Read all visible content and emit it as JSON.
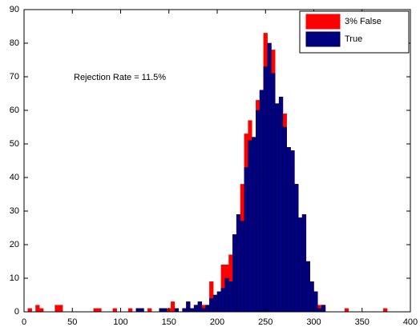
{
  "chart_data": {
    "type": "histogram",
    "bins": [
      0,
      4,
      8,
      12,
      16,
      20,
      24,
      28,
      32,
      36,
      40,
      44,
      48,
      52,
      56,
      60,
      64,
      68,
      72,
      76,
      80,
      84,
      88,
      92,
      96,
      100,
      104,
      108,
      112,
      116,
      120,
      124,
      128,
      132,
      136,
      140,
      144,
      148,
      152,
      156,
      160,
      164,
      168,
      172,
      176,
      180,
      184,
      188,
      192,
      196,
      200,
      204,
      208,
      212,
      216,
      220,
      224,
      228,
      232,
      236,
      240,
      244,
      248,
      252,
      256,
      260,
      264,
      268,
      272,
      276,
      280,
      284,
      288,
      292,
      296,
      300,
      304,
      308,
      312,
      316,
      320,
      324,
      328,
      332,
      336,
      340,
      344,
      348,
      352,
      356,
      360,
      364,
      368,
      372,
      376,
      380,
      384,
      388,
      392,
      396,
      400
    ],
    "series": [
      {
        "name": "3% False",
        "color": "#ff0000",
        "values": [
          0,
          1,
          0,
          2,
          1,
          0,
          0,
          0,
          2,
          2,
          0,
          0,
          0,
          0,
          0,
          0,
          0,
          0,
          1,
          1,
          0,
          0,
          0,
          1,
          0,
          0,
          0,
          1,
          0,
          1,
          1,
          0,
          1,
          0,
          0,
          1,
          1,
          1,
          3,
          1,
          0,
          1,
          3,
          1,
          2,
          3,
          2,
          2,
          9,
          5,
          6,
          14,
          14,
          17,
          23,
          29,
          38,
          53,
          57,
          52,
          63,
          66,
          83,
          80,
          78,
          62,
          64,
          59,
          49,
          48,
          38,
          28,
          29,
          15,
          9,
          6,
          2,
          2,
          0,
          0,
          0,
          0,
          0,
          1,
          0,
          0,
          0,
          0,
          0,
          0,
          0,
          0,
          0,
          1,
          0,
          0,
          0,
          0,
          0,
          0
        ]
      },
      {
        "name": "True",
        "color": "#000080",
        "values": [
          0,
          0,
          0,
          0,
          0,
          0,
          0,
          0,
          0,
          0,
          0,
          0,
          0,
          0,
          0,
          0,
          0,
          0,
          0,
          0,
          0,
          0,
          0,
          0,
          0,
          0,
          0,
          0,
          0,
          1,
          1,
          0,
          0,
          0,
          0,
          1,
          1,
          0,
          0,
          1,
          0,
          1,
          3,
          1,
          2,
          3,
          1,
          2,
          4,
          5,
          6,
          7,
          10,
          9,
          23,
          29,
          27,
          43,
          51,
          52,
          60,
          66,
          73,
          80,
          71,
          62,
          64,
          55,
          49,
          48,
          38,
          28,
          29,
          15,
          9,
          6,
          1,
          2,
          0,
          0,
          0,
          0,
          0,
          0,
          0,
          0,
          0,
          0,
          0,
          0,
          0,
          0,
          0,
          0,
          0,
          0,
          0,
          0,
          0,
          0
        ]
      }
    ],
    "annotation": "Rejection Rate = 11.5%",
    "xlim": [
      0,
      400
    ],
    "xticks": [
      0,
      50,
      100,
      150,
      200,
      250,
      300,
      350,
      400
    ],
    "ylim": [
      0,
      90
    ],
    "yticks": [
      0,
      10,
      20,
      30,
      40,
      50,
      60,
      70,
      80,
      90
    ],
    "legend": "upper right"
  }
}
